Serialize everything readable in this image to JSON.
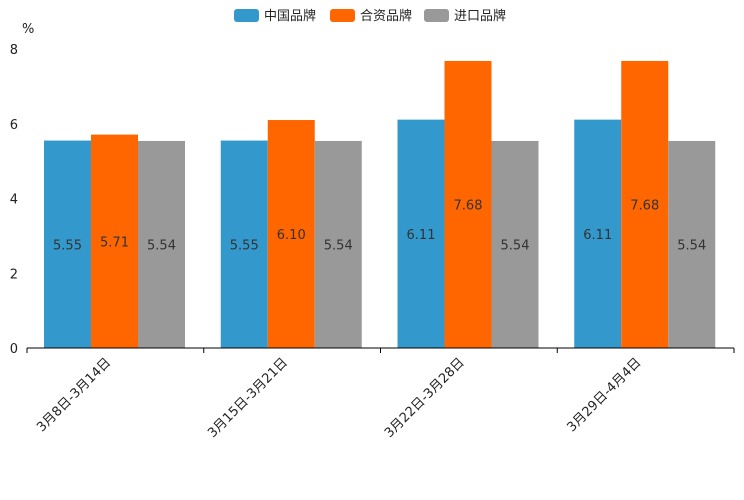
{
  "chart_data": {
    "type": "bar",
    "title": "",
    "ylabel": "%",
    "xlabel": "",
    "ylim": [
      0,
      8
    ],
    "yticks": [
      0,
      2,
      4,
      6,
      8
    ],
    "categories": [
      "3月8日-3月14日",
      "3月15日-3月21日",
      "3月22日-3月28日",
      "3月29日-4月4日"
    ],
    "series": [
      {
        "name": "中国品牌",
        "color": "#3399cc",
        "values": [
          5.55,
          5.55,
          6.11,
          6.11
        ],
        "labels": [
          "5.55",
          "5.55",
          "6.11",
          "6.11"
        ]
      },
      {
        "name": "合资品牌",
        "color": "#ff6600",
        "values": [
          5.71,
          6.1,
          7.68,
          7.68
        ],
        "labels": [
          "5.71",
          "6.10",
          "7.68",
          "7.68"
        ]
      },
      {
        "name": "进口品牌",
        "color": "#999999",
        "values": [
          5.54,
          5.54,
          5.54,
          5.54
        ],
        "labels": [
          "5.54",
          "5.54",
          "5.54",
          "5.54"
        ]
      }
    ],
    "legend_position": "top-center",
    "grid": false
  }
}
